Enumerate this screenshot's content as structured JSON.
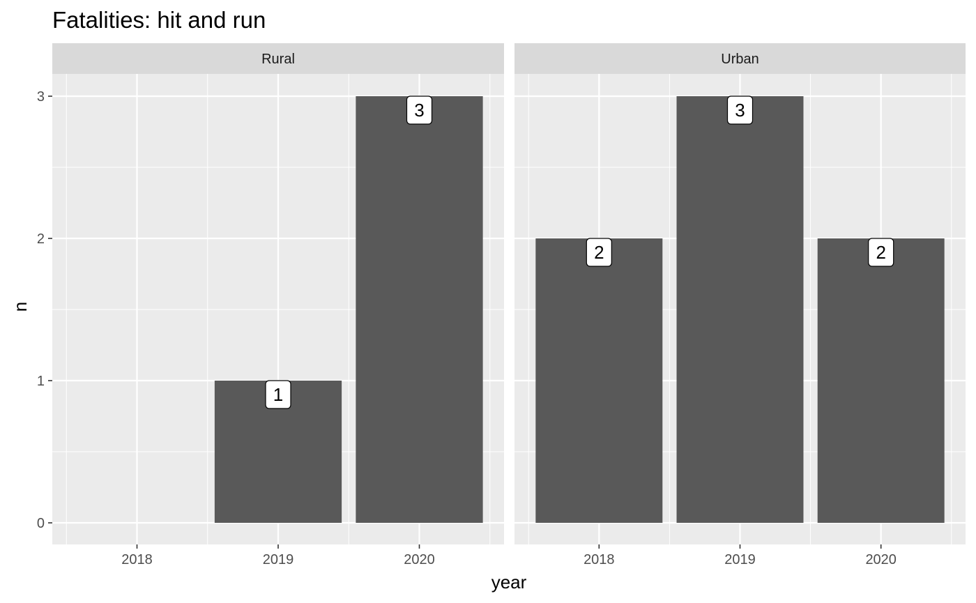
{
  "chart_data": {
    "type": "bar",
    "title": "Fatalities: hit and run",
    "xlabel": "year",
    "ylabel": "n",
    "categories": [
      "2018",
      "2019",
      "2020"
    ],
    "ylim": [
      0,
      3
    ],
    "yticks": [
      "0",
      "1",
      "2",
      "3"
    ],
    "grid": true,
    "bar_color": "#595959",
    "panel_background": "#ebebeb",
    "strip_background": "#d9d9d9",
    "facets": [
      {
        "name": "Rural",
        "values": [
          0,
          1,
          3
        ],
        "labels": [
          "",
          "1",
          "3"
        ]
      },
      {
        "name": "Urban",
        "values": [
          2,
          3,
          2
        ],
        "labels": [
          "2",
          "3",
          "2"
        ]
      }
    ]
  }
}
